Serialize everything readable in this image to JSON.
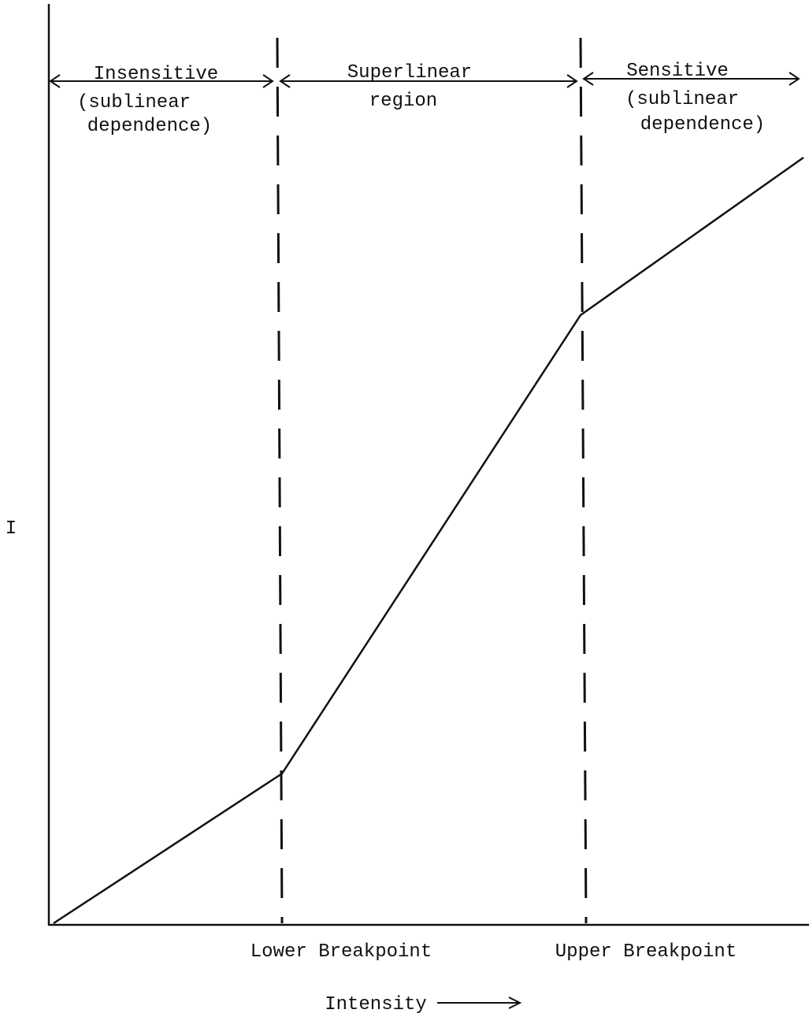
{
  "regions": [
    {
      "lines": [
        "Insensitive",
        "(sublinear",
        "dependence)"
      ]
    },
    {
      "lines": [
        "Superlinear",
        "region"
      ]
    },
    {
      "lines": [
        "Sensitive",
        "(sublinear",
        "dependence)"
      ]
    }
  ],
  "breakpoints": [
    "Lower Breakpoint",
    "Upper Breakpoint"
  ],
  "x_axis_label": "Intensity",
  "y_axis_label": "I"
}
